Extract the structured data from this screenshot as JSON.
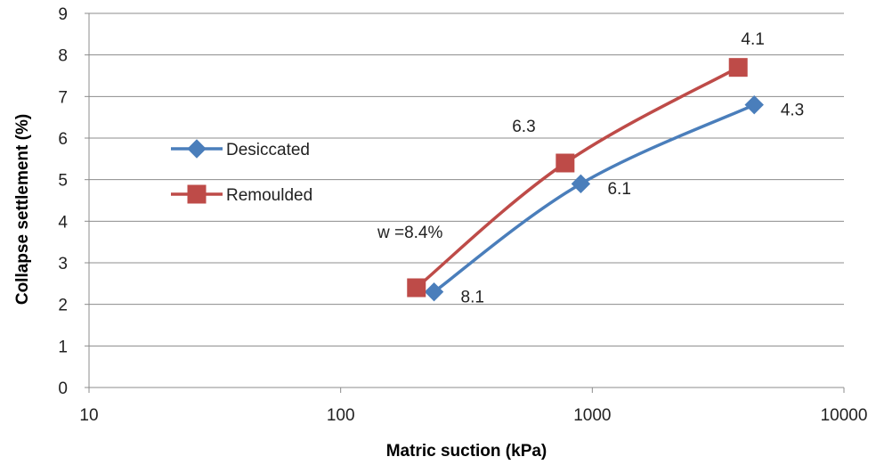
{
  "chart_data": {
    "type": "line",
    "xlabel": "Matric suction (kPa)",
    "ylabel": "Collapse settlement (%)",
    "xscale": "log",
    "xlim": [
      10,
      10000
    ],
    "ylim": [
      0,
      9
    ],
    "x_ticks": [
      10,
      100,
      1000,
      10000
    ],
    "x_tick_labels": [
      "10",
      "100",
      "1000",
      "10000"
    ],
    "y_ticks": [
      0,
      1,
      2,
      3,
      4,
      5,
      6,
      7,
      8,
      9
    ],
    "y_tick_labels": [
      "0",
      "1",
      "2",
      "3",
      "4",
      "5",
      "6",
      "7",
      "8",
      "9"
    ],
    "grid": "horizontal",
    "legend_position": "left",
    "series": [
      {
        "name": "Desiccated",
        "color": "#4a7ebb",
        "marker": "diamond",
        "points": [
          {
            "x": 235,
            "y": 2.3
          },
          {
            "x": 900,
            "y": 4.9
          },
          {
            "x": 4400,
            "y": 6.8
          }
        ]
      },
      {
        "name": "Remoulded",
        "color": "#be4b48",
        "marker": "square",
        "points": [
          {
            "x": 200,
            "y": 2.4
          },
          {
            "x": 780,
            "y": 5.4
          },
          {
            "x": 3800,
            "y": 7.7
          }
        ]
      }
    ],
    "annotations": [
      {
        "text": "w =8.4%",
        "x": 140,
        "y": 3.75
      },
      {
        "text": "8.1",
        "x": 300,
        "y": 2.2
      },
      {
        "text": "6.1",
        "x": 1150,
        "y": 4.8
      },
      {
        "text": "4.3",
        "x": 5600,
        "y": 6.7
      },
      {
        "text": "6.3",
        "x": 480,
        "y": 6.3
      },
      {
        "text": "4.1",
        "x": 3900,
        "y": 8.4
      }
    ]
  }
}
